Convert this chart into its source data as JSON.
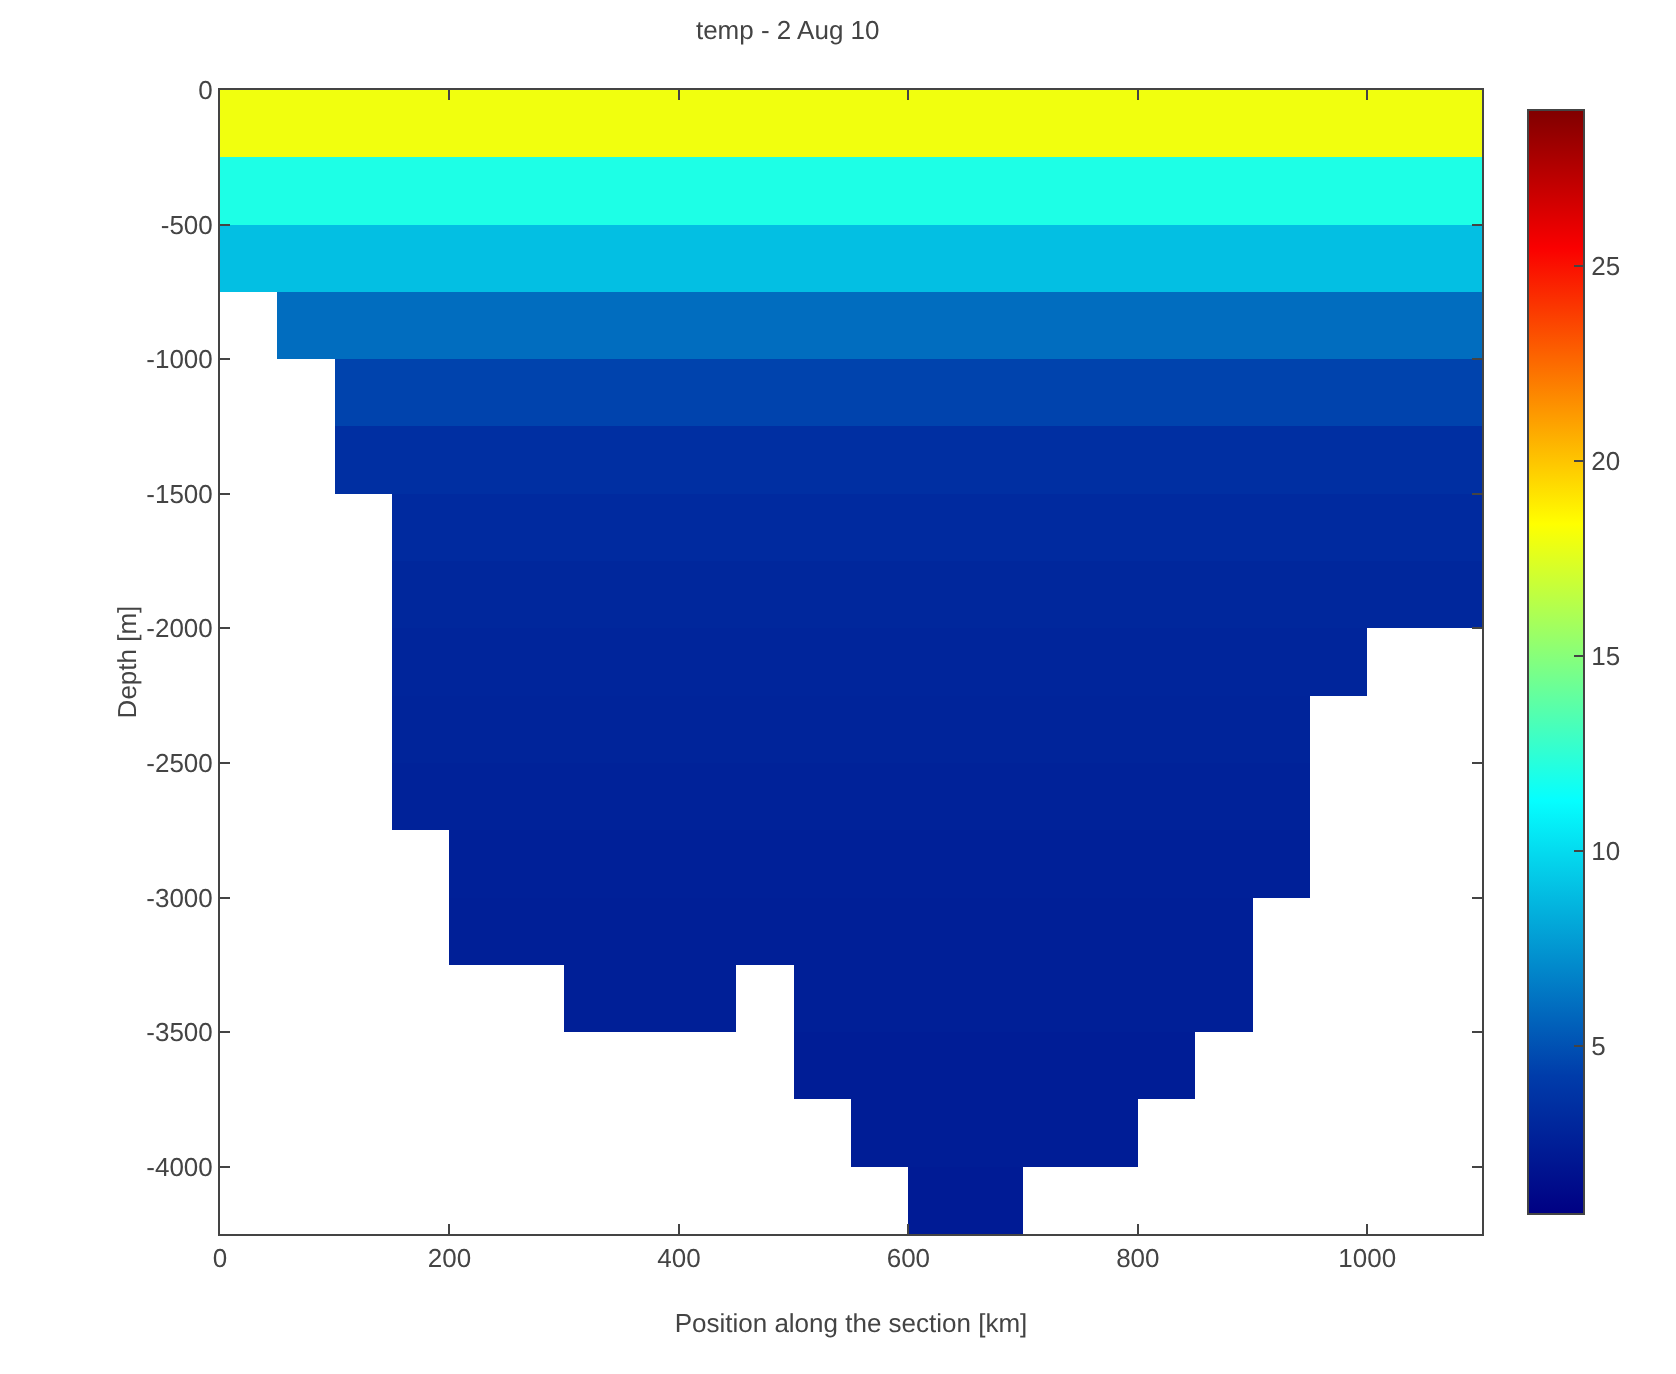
{
  "chart_data": {
    "type": "heatmap",
    "title": "temp - 2 Aug 10",
    "xlabel": "Position along the section [km]",
    "ylabel": "Depth [m]",
    "x": [
      25,
      75,
      125,
      175,
      225,
      275,
      325,
      375,
      425,
      475,
      525,
      575,
      625,
      675,
      725,
      775,
      825,
      875,
      925,
      975,
      1025,
      1075
    ],
    "y": [
      -125,
      -375,
      -625,
      -875,
      -1125,
      -1375,
      -1625,
      -1875,
      -2125,
      -2375,
      -2625,
      -2875,
      -3125,
      -3375,
      -3625,
      -3875,
      -4125
    ],
    "xlim": [
      0,
      1100
    ],
    "xticks": [
      0,
      200,
      400,
      600,
      800,
      1000
    ],
    "ylim": [
      -4250,
      0
    ],
    "yticks": [
      0,
      -500,
      -1000,
      -1500,
      -2000,
      -2500,
      -3000,
      -3500,
      -4000
    ],
    "clim": [
      0.7,
      29
    ],
    "cticks": [
      5,
      10,
      15,
      20,
      25
    ],
    "grid": false,
    "cells": [
      [
        18,
        18,
        18,
        18,
        18,
        18,
        18,
        18,
        18,
        18,
        18,
        18,
        18,
        18,
        18,
        18,
        18,
        18,
        18,
        18,
        18,
        18
      ],
      [
        12,
        12,
        12,
        12,
        12,
        12,
        12,
        12,
        12,
        12,
        12,
        12,
        12,
        12,
        12,
        12,
        12,
        12,
        12,
        12,
        12,
        12
      ],
      [
        9,
        9,
        9,
        9,
        9,
        9,
        9,
        9,
        9,
        9,
        9,
        9,
        9,
        9,
        9,
        9,
        9,
        9,
        9,
        9,
        9,
        9
      ],
      [
        null,
        6,
        6,
        6,
        6,
        6,
        6,
        6,
        6,
        6,
        6,
        6,
        6,
        6,
        6,
        6,
        6,
        6,
        6,
        6,
        6,
        6
      ],
      [
        null,
        null,
        4.5,
        4.5,
        4.5,
        4.5,
        4.5,
        4.5,
        4.5,
        4.5,
        4.5,
        4.5,
        4.5,
        4.5,
        4.5,
        4.5,
        4.5,
        4.5,
        4.5,
        4.5,
        4.5,
        4.5
      ],
      [
        null,
        null,
        3.5,
        3.5,
        3.5,
        3.5,
        3.5,
        3.5,
        3.5,
        3.5,
        3.5,
        3.5,
        3.5,
        3.5,
        3.5,
        3.5,
        3.5,
        3.5,
        3.5,
        3.5,
        3.5,
        3.5
      ],
      [
        null,
        null,
        null,
        3.2,
        3.2,
        3.2,
        3.2,
        3.2,
        3.2,
        3.2,
        3.2,
        3.2,
        3.2,
        3.2,
        3.2,
        3.2,
        3.2,
        3.2,
        3.2,
        3.2,
        3.2,
        3.2
      ],
      [
        null,
        null,
        null,
        3,
        3,
        3,
        3,
        3,
        3,
        3,
        3,
        3,
        3,
        3,
        3,
        3,
        3,
        3,
        3,
        3,
        3,
        3
      ],
      [
        null,
        null,
        null,
        2.9,
        2.9,
        2.9,
        2.9,
        2.9,
        2.9,
        2.9,
        2.9,
        2.9,
        2.9,
        2.9,
        2.9,
        2.9,
        2.9,
        2.9,
        2.9,
        2.9,
        null,
        null
      ],
      [
        null,
        null,
        null,
        2.8,
        2.8,
        2.8,
        2.8,
        2.8,
        2.8,
        2.8,
        2.8,
        2.8,
        2.8,
        2.8,
        2.8,
        2.8,
        2.8,
        2.8,
        2.8,
        null,
        null,
        null
      ],
      [
        null,
        null,
        null,
        2.7,
        2.7,
        2.7,
        2.7,
        2.7,
        2.7,
        2.7,
        2.7,
        2.7,
        2.7,
        2.7,
        2.7,
        2.7,
        2.7,
        2.7,
        2.7,
        null,
        null,
        null
      ],
      [
        null,
        null,
        null,
        null,
        2.6,
        2.6,
        2.6,
        2.6,
        2.6,
        2.6,
        2.6,
        2.6,
        2.6,
        2.6,
        2.6,
        2.6,
        2.6,
        2.6,
        2.6,
        null,
        null,
        null
      ],
      [
        null,
        null,
        null,
        null,
        2.5,
        2.5,
        2.5,
        2.5,
        2.5,
        2.5,
        2.5,
        2.5,
        2.5,
        2.5,
        2.5,
        2.5,
        2.5,
        2.5,
        null,
        null,
        null,
        null
      ],
      [
        null,
        null,
        null,
        null,
        null,
        null,
        2.5,
        2.5,
        2.5,
        null,
        2.5,
        2.5,
        2.5,
        2.5,
        2.5,
        2.5,
        2.5,
        2.5,
        null,
        null,
        null,
        null
      ],
      [
        null,
        null,
        null,
        null,
        null,
        null,
        null,
        null,
        null,
        null,
        2.4,
        2.4,
        2.4,
        2.4,
        2.4,
        2.4,
        2.4,
        null,
        null,
        null,
        null,
        null
      ],
      [
        null,
        null,
        null,
        null,
        null,
        null,
        null,
        null,
        null,
        null,
        null,
        2.4,
        2.4,
        2.4,
        2.4,
        2.4,
        null,
        null,
        null,
        null,
        null,
        null
      ],
      [
        null,
        null,
        null,
        null,
        null,
        null,
        null,
        null,
        null,
        null,
        null,
        null,
        2.3,
        2.3,
        null,
        null,
        null,
        null,
        null,
        null,
        null,
        null
      ]
    ]
  }
}
